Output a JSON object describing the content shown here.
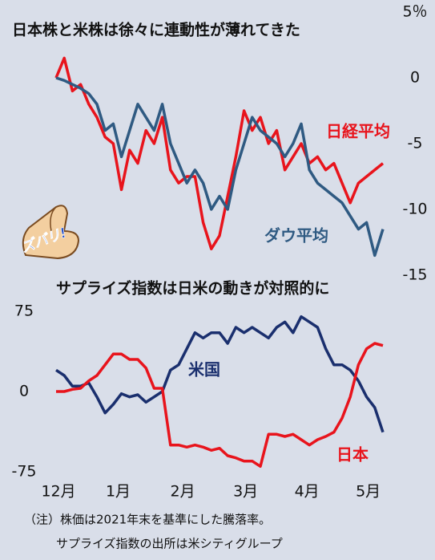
{
  "chart_data": [
    {
      "type": "line",
      "title": "日本株と米株は徐々に連動性が薄れてきた",
      "xlim": [
        0,
        40
      ],
      "ylim": [
        -15,
        5
      ],
      "yticks": [
        {
          "value": 5,
          "label": "5％"
        },
        0,
        -5,
        -10,
        -15
      ],
      "series": [
        {
          "name": "日経平均",
          "color": "#e8141c",
          "values": [
            0,
            1.5,
            -1,
            -0.5,
            -2,
            -3,
            -4.5,
            -5,
            -8.5,
            -5.5,
            -6.5,
            -4,
            -5,
            -3,
            -7,
            -8,
            -7.5,
            -7.5,
            -11,
            -13,
            -12,
            -9,
            -6,
            -2.5,
            -4,
            -3,
            -5,
            -4,
            -7,
            -6,
            -5,
            -6.5,
            -6,
            -7,
            -6.5,
            -8,
            -9.5,
            -8,
            -7.5,
            -7,
            -6.5
          ]
        },
        {
          "name": "ダウ平均",
          "color": "#2f5a82",
          "values": [
            0,
            -0.2,
            -0.5,
            -0.8,
            -1.2,
            -2,
            -4,
            -3.5,
            -6,
            -4,
            -2,
            -3,
            -4,
            -2,
            -5,
            -6.5,
            -8,
            -7,
            -8,
            -10,
            -9,
            -10,
            -7,
            -5,
            -3,
            -4,
            -4.5,
            -5,
            -6,
            -5,
            -3.5,
            -7,
            -8,
            -8.5,
            -9,
            -9.5,
            -10.5,
            -11.5,
            -11,
            -13.5,
            -11.5
          ]
        }
      ]
    },
    {
      "type": "line",
      "title": "サプライズ指数は日米の動きが対照的に",
      "xlim": [
        0,
        40
      ],
      "ylim": [
        -75,
        75
      ],
      "yticks": [
        75,
        0,
        -75
      ],
      "xticks": [
        {
          "value": 0.3,
          "label": "12月"
        },
        {
          "value": 7.6,
          "label": "1月"
        },
        {
          "value": 15.5,
          "label": "2月"
        },
        {
          "value": 23.2,
          "label": "3月"
        },
        {
          "value": 30.7,
          "label": "4月"
        },
        {
          "value": 38.2,
          "label": "5月"
        }
      ],
      "series": [
        {
          "name": "米国",
          "color": "#1a2f6e",
          "values": [
            20,
            15,
            5,
            5,
            8,
            -5,
            -20,
            -12,
            -2,
            -5,
            -3,
            -10,
            -5,
            0,
            20,
            25,
            40,
            55,
            50,
            55,
            55,
            45,
            60,
            55,
            60,
            55,
            50,
            60,
            65,
            55,
            70,
            65,
            60,
            40,
            25,
            25,
            20,
            10,
            -5,
            -15,
            -38
          ]
        },
        {
          "name": "日本",
          "color": "#e8141c",
          "values": [
            0,
            0,
            2,
            3,
            10,
            15,
            25,
            35,
            35,
            30,
            30,
            22,
            3,
            3,
            -50,
            -50,
            -52,
            -50,
            -52,
            -55,
            -53,
            -60,
            -62,
            -65,
            -65,
            -70,
            -40,
            -40,
            -42,
            -40,
            -45,
            -50,
            -45,
            -42,
            -38,
            -25,
            -5,
            25,
            40,
            45,
            43
          ]
        }
      ]
    }
  ],
  "notes": [
    "（注）株価は2021年末を基準にした騰落率。",
    "サプライズ指数の出所は米シティグループ"
  ],
  "badge": "ズバリ!"
}
